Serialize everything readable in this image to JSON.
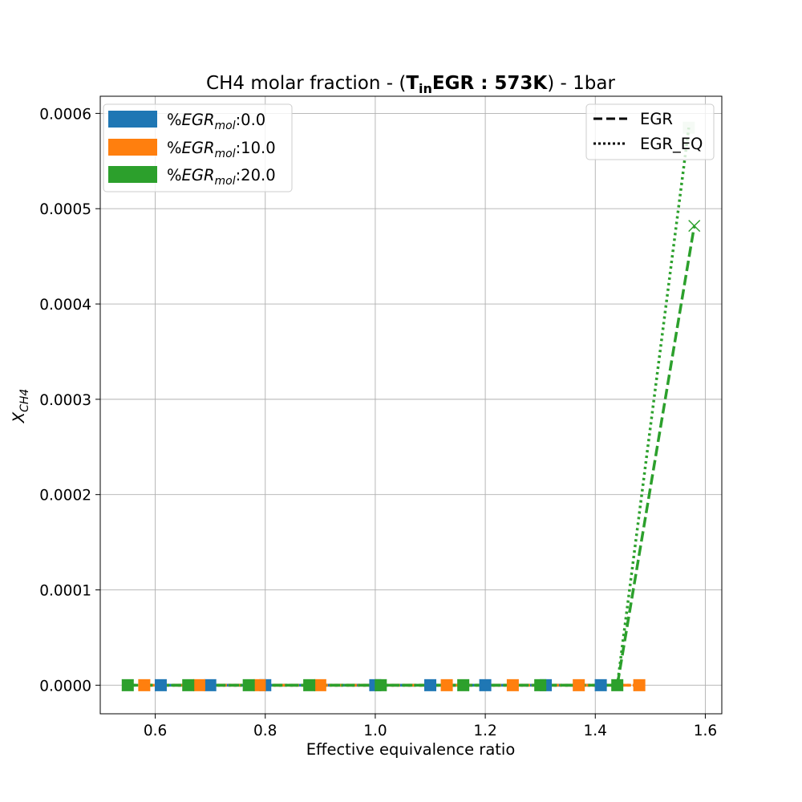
{
  "chart_data": {
    "type": "line",
    "title": {
      "prefix": "CH4 molar fraction - (",
      "bold_main": "T",
      "bold_sub": "in",
      "bold_rest": "EGR : 573K",
      "suffix": ") - 1bar"
    },
    "xlabel": "Effective equivalence ratio",
    "ylabel": {
      "main": "X",
      "sub": "CH4"
    },
    "xlim": [
      0.5,
      1.63
    ],
    "ylim": [
      -3e-05,
      0.000618
    ],
    "xticks": [
      0.6,
      0.8,
      1.0,
      1.2,
      1.4,
      1.6
    ],
    "xtick_labels": [
      "0.6",
      "0.8",
      "1.0",
      "1.2",
      "1.4",
      "1.6"
    ],
    "yticks": [
      0.0,
      0.0001,
      0.0002,
      0.0003,
      0.0004,
      0.0005,
      0.0006
    ],
    "ytick_labels": [
      "0.0000",
      "0.0001",
      "0.0002",
      "0.0003",
      "0.0004",
      "0.0005",
      "0.0006"
    ],
    "grid": true,
    "series": [
      {
        "group": "%EGR_mol:0.0",
        "color": "#1f77b4",
        "egr": {
          "x": [
            0.61,
            0.7,
            0.8,
            1.0,
            1.1,
            1.2,
            1.31,
            1.41
          ],
          "y": [
            0,
            0,
            0,
            0,
            0,
            0,
            0,
            0
          ]
        },
        "egr_eq": {
          "x": [
            0.61,
            0.7,
            0.8,
            1.0,
            1.1,
            1.2,
            1.31,
            1.41
          ],
          "y": [
            0,
            0,
            0,
            0,
            0,
            0,
            0,
            0
          ]
        }
      },
      {
        "group": "%EGR_mol:10.0",
        "color": "#ff7f0e",
        "egr": {
          "x": [
            0.58,
            0.68,
            0.79,
            0.9,
            1.13,
            1.25,
            1.37,
            1.48
          ],
          "y": [
            0,
            0,
            0,
            0,
            0,
            0,
            0,
            0
          ]
        },
        "egr_eq": {
          "x": [
            0.58,
            0.68,
            0.79,
            0.9,
            1.13,
            1.25,
            1.37,
            1.48
          ],
          "y": [
            0,
            0,
            0,
            0,
            0,
            0,
            0,
            0
          ]
        }
      },
      {
        "group": "%EGR_mol:20.0",
        "color": "#2ca02c",
        "egr": {
          "x": [
            0.55,
            0.66,
            0.77,
            0.88,
            1.01,
            1.16,
            1.3,
            1.44,
            1.58
          ],
          "y": [
            0,
            0,
            0,
            0,
            0,
            0,
            0,
            0,
            0.000482
          ]
        },
        "egr_eq": {
          "x": [
            0.55,
            0.66,
            0.77,
            0.88,
            1.01,
            1.16,
            1.3,
            1.44,
            1.57
          ],
          "y": [
            0,
            0,
            0,
            0,
            0,
            0,
            0,
            0,
            0.000585
          ]
        }
      }
    ],
    "legend_groups": {
      "placement": "top-left",
      "entries": [
        {
          "prefix": "%",
          "italic": "EGR",
          "sub": "mol",
          "value": ":0.0",
          "color": "#1f77b4"
        },
        {
          "prefix": "%",
          "italic": "EGR",
          "sub": "mol",
          "value": ":10.0",
          "color": "#ff7f0e"
        },
        {
          "prefix": "%",
          "italic": "EGR",
          "sub": "mol",
          "value": ":20.0",
          "color": "#2ca02c"
        }
      ]
    },
    "legend_styles": {
      "placement": "top-right",
      "entries": [
        {
          "label": "EGR",
          "style": "dashed"
        },
        {
          "label": "EGR_EQ",
          "style": "dotted"
        }
      ]
    }
  }
}
